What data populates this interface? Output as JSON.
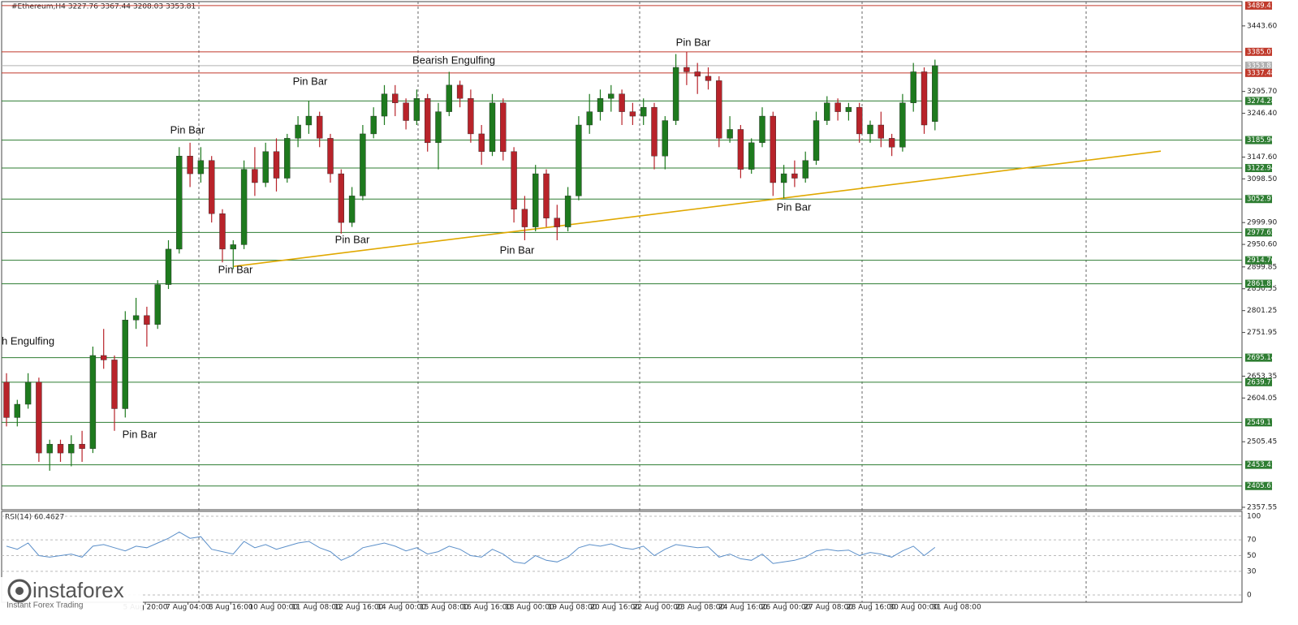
{
  "chart_data": [
    {
      "type": "candlestick",
      "title": "#Ethereum,H4  3227.76 3367.44 3208.03 3353.81",
      "ohlc": [
        [
          2640,
          2660,
          2540,
          2560
        ],
        [
          2560,
          2600,
          2540,
          2590
        ],
        [
          2590,
          2660,
          2580,
          2640
        ],
        [
          2640,
          2650,
          2460,
          2480
        ],
        [
          2480,
          2510,
          2440,
          2500
        ],
        [
          2500,
          2510,
          2460,
          2480
        ],
        [
          2480,
          2520,
          2450,
          2500
        ],
        [
          2500,
          2530,
          2460,
          2490
        ],
        [
          2490,
          2720,
          2480,
          2700
        ],
        [
          2700,
          2760,
          2670,
          2690
        ],
        [
          2690,
          2700,
          2530,
          2580
        ],
        [
          2580,
          2800,
          2560,
          2780
        ],
        [
          2780,
          2830,
          2760,
          2790
        ],
        [
          2790,
          2810,
          2720,
          2770
        ],
        [
          2770,
          2870,
          2760,
          2860
        ],
        [
          2860,
          2960,
          2850,
          2940
        ],
        [
          2940,
          3170,
          2930,
          3150
        ],
        [
          3150,
          3180,
          3080,
          3110
        ],
        [
          3110,
          3170,
          3090,
          3140
        ],
        [
          3140,
          3150,
          3000,
          3020
        ],
        [
          3020,
          3030,
          2910,
          2940
        ],
        [
          2940,
          2960,
          2895,
          2950
        ],
        [
          2950,
          3140,
          2940,
          3120
        ],
        [
          3120,
          3170,
          3060,
          3090
        ],
        [
          3090,
          3180,
          3080,
          3160
        ],
        [
          3160,
          3190,
          3070,
          3100
        ],
        [
          3100,
          3200,
          3090,
          3190
        ],
        [
          3190,
          3240,
          3170,
          3220
        ],
        [
          3220,
          3275,
          3200,
          3240
        ],
        [
          3240,
          3250,
          3170,
          3190
        ],
        [
          3190,
          3200,
          3090,
          3110
        ],
        [
          3110,
          3120,
          2975,
          3000
        ],
        [
          3000,
          3080,
          2990,
          3060
        ],
        [
          3060,
          3220,
          3050,
          3200
        ],
        [
          3200,
          3260,
          3190,
          3240
        ],
        [
          3240,
          3310,
          3220,
          3290
        ],
        [
          3290,
          3310,
          3240,
          3270
        ],
        [
          3270,
          3280,
          3210,
          3230
        ],
        [
          3230,
          3300,
          3220,
          3280
        ],
        [
          3280,
          3290,
          3160,
          3180
        ],
        [
          3180,
          3270,
          3120,
          3250
        ],
        [
          3250,
          3340,
          3240,
          3310
        ],
        [
          3310,
          3320,
          3260,
          3280
        ],
        [
          3280,
          3300,
          3180,
          3200
        ],
        [
          3200,
          3220,
          3130,
          3160
        ],
        [
          3160,
          3290,
          3150,
          3270
        ],
        [
          3270,
          3280,
          3140,
          3160
        ],
        [
          3160,
          3170,
          3000,
          3030
        ],
        [
          3030,
          3060,
          2960,
          2990
        ],
        [
          2990,
          3130,
          2980,
          3110
        ],
        [
          3110,
          3120,
          2990,
          3010
        ],
        [
          3010,
          3040,
          2960,
          2990
        ],
        [
          2990,
          3080,
          2980,
          3060
        ],
        [
          3060,
          3240,
          3050,
          3220
        ],
        [
          3220,
          3290,
          3200,
          3250
        ],
        [
          3250,
          3300,
          3230,
          3280
        ],
        [
          3280,
          3310,
          3250,
          3290
        ],
        [
          3290,
          3300,
          3220,
          3250
        ],
        [
          3250,
          3270,
          3220,
          3240
        ],
        [
          3240,
          3280,
          3220,
          3260
        ],
        [
          3260,
          3270,
          3120,
          3150
        ],
        [
          3150,
          3240,
          3120,
          3230
        ],
        [
          3230,
          3380,
          3220,
          3350
        ],
        [
          3350,
          3385,
          3310,
          3340
        ],
        [
          3340,
          3360,
          3290,
          3330
        ],
        [
          3330,
          3350,
          3300,
          3320
        ],
        [
          3320,
          3330,
          3170,
          3190
        ],
        [
          3190,
          3240,
          3180,
          3210
        ],
        [
          3210,
          3220,
          3100,
          3120
        ],
        [
          3120,
          3190,
          3110,
          3180
        ],
        [
          3180,
          3260,
          3170,
          3240
        ],
        [
          3240,
          3250,
          3060,
          3090
        ],
        [
          3090,
          3130,
          3055,
          3110
        ],
        [
          3110,
          3140,
          3080,
          3100
        ],
        [
          3100,
          3160,
          3090,
          3140
        ],
        [
          3140,
          3250,
          3130,
          3230
        ],
        [
          3230,
          3285,
          3220,
          3270
        ],
        [
          3270,
          3280,
          3230,
          3250
        ],
        [
          3250,
          3270,
          3230,
          3260
        ],
        [
          3260,
          3270,
          3180,
          3200
        ],
        [
          3200,
          3230,
          3180,
          3220
        ],
        [
          3220,
          3250,
          3170,
          3190
        ],
        [
          3190,
          3200,
          3150,
          3170
        ],
        [
          3170,
          3290,
          3160,
          3270
        ],
        [
          3270,
          3360,
          3250,
          3340
        ],
        [
          3340,
          3350,
          3200,
          3220
        ],
        [
          3227.76,
          3367.44,
          3208.03,
          3353.81
        ]
      ],
      "up_color": "#1e7a1e",
      "down_color": "#b8232a",
      "ylim": [
        2352,
        3502
      ],
      "yticks": [
        {
          "value": 3443.6,
          "label": "3443.60"
        },
        {
          "value": 3295.7,
          "label": "3295.70"
        },
        {
          "value": 3246.4,
          "label": "3246.40"
        },
        {
          "value": 3147.6,
          "label": "3147.60"
        },
        {
          "value": 3098.5,
          "label": "3098.50"
        },
        {
          "value": 2999.9,
          "label": "2999.90"
        },
        {
          "value": 2950.6,
          "label": "2950.60"
        },
        2899.85,
        2850.55,
        2801.25,
        2751.95,
        2653.35,
        2604.05,
        2505.45,
        2357.55
      ],
      "levels": [
        {
          "value": 3489.41,
          "color": "#c0392b"
        },
        {
          "value": 3385.07,
          "color": "#c0392b"
        },
        {
          "value": 3353.81,
          "color": "#b0b0b0"
        },
        {
          "value": 3337.48,
          "color": "#c0392b"
        },
        {
          "value": 3274.28,
          "color": "#2e7d32"
        },
        {
          "value": 3185.96,
          "color": "#2e7d32"
        },
        {
          "value": 3122.94,
          "color": "#2e7d32"
        },
        {
          "value": 3052.97,
          "color": "#2e7d32"
        },
        {
          "value": 2977.65,
          "color": "#2e7d32"
        },
        {
          "value": 2914.76,
          "color": "#2e7d32"
        },
        {
          "value": 2861.81,
          "color": "#2e7d32"
        },
        {
          "value": 2695.14,
          "color": "#2e7d32"
        },
        {
          "value": 2639.77,
          "color": "#2e7d32"
        },
        {
          "value": 2549.17,
          "color": "#2e7d32"
        },
        {
          "value": 2453.41,
          "color": "#2e7d32"
        },
        {
          "value": 2405.61,
          "color": "#2e7d32"
        }
      ],
      "trendline": [
        2901,
        3161
      ],
      "trendline_color": "#e0a800",
      "annotations": [
        "h Engulfing",
        "Pin Bar",
        "Pin Bar",
        "Pin Bar",
        "Pin Bar",
        "Pin Bar",
        "Bearish Engulfing",
        "Pin Bar",
        "Pin Bar",
        "Pin Bar"
      ],
      "xtick_labels": [
        "5 Aug 20:00",
        "7 Aug 04:00",
        "8 Aug 16:00",
        "10 Aug 00:00",
        "11 Aug 08:00",
        "12 Aug 16:00",
        "14 Aug 00:00",
        "15 Aug 08:00",
        "16 Aug 16:00",
        "18 Aug 00:00",
        "19 Aug 08:00",
        "20 Aug 16:00",
        "22 Aug 00:00",
        "23 Aug 08:00",
        "24 Aug 16:00",
        "26 Aug 00:00",
        "27 Aug 08:00",
        "28 Aug 16:00",
        "30 Aug 00:00",
        "31 Aug 08:00"
      ]
    },
    {
      "type": "line",
      "title": "RSI(14) 60.4627",
      "values": [
        62,
        58,
        66,
        50,
        48,
        50,
        52,
        48,
        62,
        64,
        60,
        56,
        62,
        60,
        66,
        72,
        80,
        72,
        74,
        58,
        55,
        52,
        68,
        60,
        64,
        58,
        62,
        66,
        68,
        60,
        55,
        44,
        50,
        60,
        63,
        66,
        62,
        56,
        60,
        52,
        55,
        62,
        58,
        50,
        48,
        58,
        52,
        42,
        40,
        50,
        44,
        42,
        48,
        60,
        64,
        62,
        65,
        60,
        58,
        62,
        50,
        58,
        64,
        62,
        60,
        61,
        48,
        52,
        46,
        44,
        52,
        40,
        42,
        44,
        48,
        56,
        58,
        56,
        57,
        50,
        54,
        52,
        48,
        56,
        62,
        50,
        60.4627
      ],
      "color": "#5b8fc9",
      "ylim": [
        0,
        100
      ],
      "yticks": [
        0,
        30,
        50,
        70,
        100
      ]
    }
  ],
  "logo": {
    "name": "instaforex",
    "tagline": "Instant Forex Trading"
  }
}
